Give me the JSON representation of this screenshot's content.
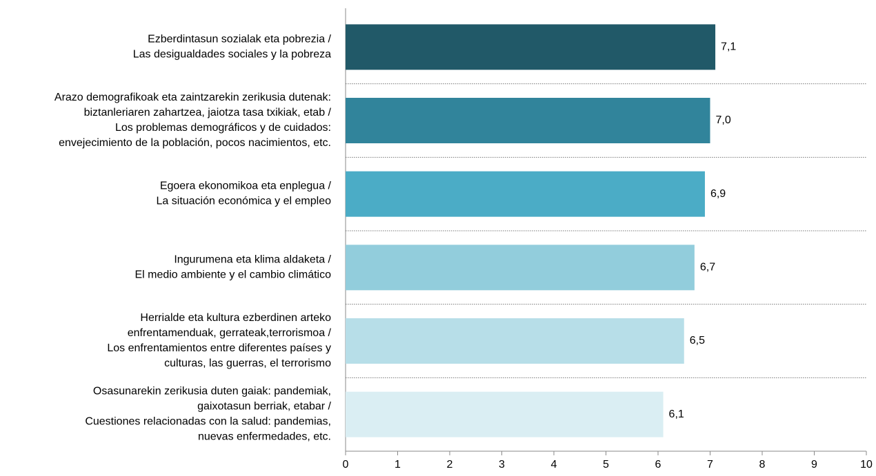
{
  "chart_data": {
    "type": "barh",
    "categories": [
      "Ezberdintasun sozialak eta pobrezia /\nLas desigualdades sociales y la pobreza",
      "Arazo demografikoak eta zaintzarekin zerikusia dutenak:\nbiztanleriaren zahartzea, jaiotza tasa txikiak, etab /\nLos problemas demográficos y de cuidados:\nenvejecimiento de la población, pocos nacimientos, etc.",
      "Egoera ekonomikoa eta enplegua /\nLa situación económica y el empleo",
      "Ingurumena eta klima aldaketa /\nEl medio ambiente y el cambio climático",
      "Herrialde eta kultura ezberdinen arteko\nenfrentamenduak, gerrateak,terrorismoa /\nLos enfrentamientos entre diferentes países y\nculturas, las guerras, el terrorismo",
      "Osasunarekin zerikusia duten gaiak: pandemiak,\ngaixotasun berriak, etabar /\nCuestiones relacionadas con la salud: pandemias,\nnuevas enfermedades, etc."
    ],
    "values": [
      7.1,
      7.0,
      6.9,
      6.7,
      6.5,
      6.1
    ],
    "value_labels": [
      "7,1",
      "7,0",
      "6,9",
      "6,7",
      "6,5",
      "6,1"
    ],
    "colors": [
      "#215968",
      "#31849b",
      "#4bacc6",
      "#92cddc",
      "#b7dee8",
      "#daeef3"
    ],
    "xlim": [
      0,
      10
    ],
    "xticks": [
      0,
      1,
      2,
      3,
      4,
      5,
      6,
      7,
      8,
      9,
      10
    ]
  }
}
